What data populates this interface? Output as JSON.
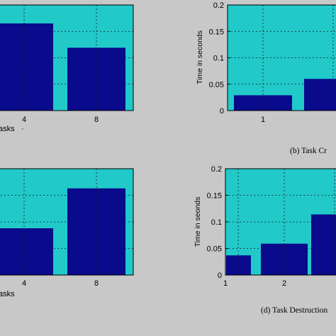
{
  "colors": {
    "background": "#c8c8c8",
    "plot_bg": "#21c9c9",
    "bar": "#0a0a8c",
    "grid": "#1a1a1a"
  },
  "chart_data": [
    {
      "id": "a",
      "type": "bar",
      "caption": "",
      "xlabel": "asks",
      "ylabel": "",
      "ylim": [
        0,
        0.2
      ],
      "yticks": [],
      "grid": true,
      "categories": [
        "4",
        "8"
      ],
      "values": [
        0.165,
        0.119
      ]
    },
    {
      "id": "b",
      "type": "bar",
      "caption": "(b) Task Cr",
      "xlabel": "",
      "ylabel": "Time in seconds",
      "ylim": [
        0,
        0.2
      ],
      "yticks": [
        "0",
        "0.05",
        "0.1",
        "0.15",
        "0.2"
      ],
      "grid": true,
      "categories": [
        "1",
        ""
      ],
      "values": [
        0.029,
        0.06
      ]
    },
    {
      "id": "c",
      "type": "bar",
      "caption": "",
      "xlabel": "asks",
      "ylabel": "",
      "ylim": [
        0,
        0.2
      ],
      "yticks": [],
      "grid": true,
      "categories": [
        "4",
        "8"
      ],
      "values": [
        0.088,
        0.163
      ]
    },
    {
      "id": "d",
      "type": "bar",
      "caption": "(d) Task Destruction",
      "xlabel": "",
      "ylabel": "Time in seonds",
      "ylim": [
        0,
        0.2
      ],
      "yticks": [
        "0",
        "0.05",
        "0.1",
        "0.15",
        "0.2"
      ],
      "grid": true,
      "categories": [
        "1",
        "2",
        ""
      ],
      "values": [
        0.037,
        0.059,
        0.114
      ]
    }
  ]
}
